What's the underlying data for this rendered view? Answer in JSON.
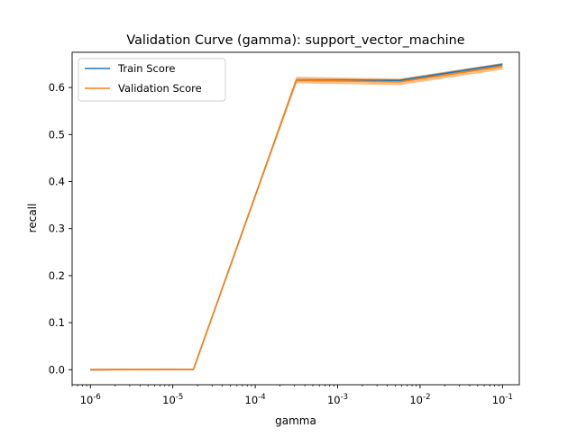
{
  "chart_data": {
    "type": "line",
    "title": "Validation Curve (gamma): support_vector_machine",
    "xlabel": "gamma",
    "ylabel": "recall",
    "x_scale": "log",
    "xlim": [
      6e-07,
      0.16
    ],
    "ylim": [
      -0.032,
      0.675
    ],
    "x": [
      1e-06,
      1.778e-05,
      0.0003162,
      0.005623,
      0.1
    ],
    "series": [
      {
        "name": "Train Score",
        "color": "#1f77b4",
        "values": [
          0.0,
          0.0005,
          0.616,
          0.615,
          0.649
        ],
        "band": [
          0.002,
          0.001,
          0.003,
          0.003,
          0.003
        ]
      },
      {
        "name": "Validation Score",
        "color": "#ff7f0e",
        "values": [
          0.0,
          0.0005,
          0.616,
          0.612,
          0.645
        ],
        "band": [
          0.002,
          0.002,
          0.007,
          0.007,
          0.007
        ]
      }
    ],
    "xticks": [
      {
        "exp": "-6",
        "value": 1e-06
      },
      {
        "exp": "-5",
        "value": 1e-05
      },
      {
        "exp": "-4",
        "value": 0.0001
      },
      {
        "exp": "-3",
        "value": 0.001
      },
      {
        "exp": "-2",
        "value": 0.01
      },
      {
        "exp": "-1",
        "value": 0.1
      }
    ],
    "xtick_base": "10",
    "yticks": [
      {
        "label": "0.0",
        "value": 0.0
      },
      {
        "label": "0.1",
        "value": 0.1
      },
      {
        "label": "0.2",
        "value": 0.2
      },
      {
        "label": "0.3",
        "value": 0.3
      },
      {
        "label": "0.4",
        "value": 0.4
      },
      {
        "label": "0.5",
        "value": 0.5
      },
      {
        "label": "0.6",
        "value": 0.6
      }
    ],
    "grid": false,
    "legend": "upper left"
  }
}
